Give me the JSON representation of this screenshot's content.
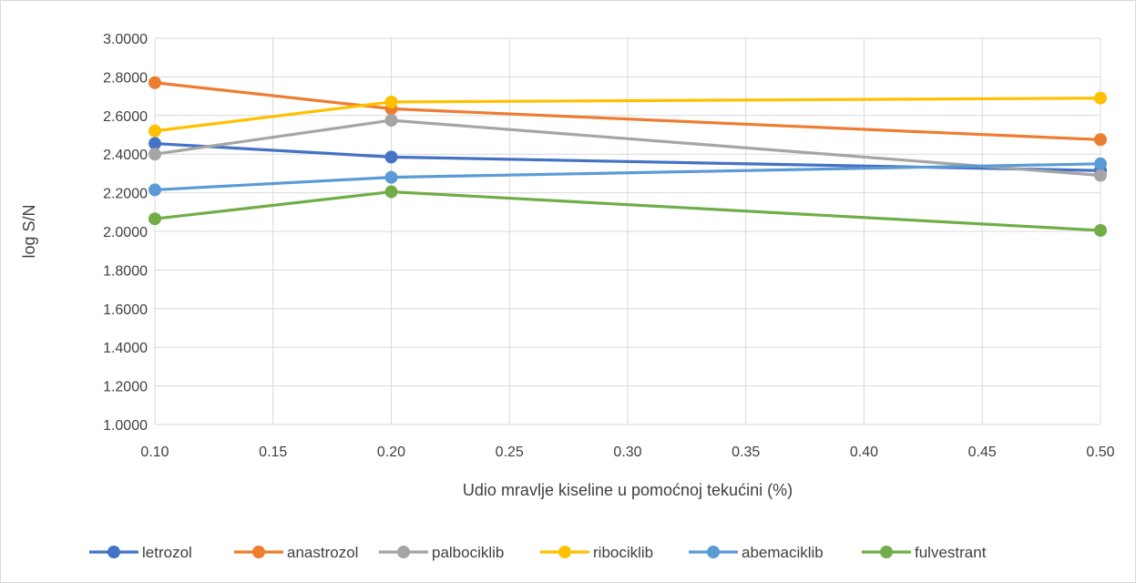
{
  "chart_data": {
    "type": "line",
    "title": "",
    "xlabel": "Udio mravlje kiseline u pomoćnoj tekućini (%)",
    "ylabel": "log S/N",
    "xlim": [
      0.1,
      0.5
    ],
    "ylim": [
      1.0,
      3.0
    ],
    "x_ticks": [
      "0.10",
      "0.15",
      "0.20",
      "0.25",
      "0.30",
      "0.35",
      "0.40",
      "0.45",
      "0.50"
    ],
    "y_ticks": [
      "1.0000",
      "1.2000",
      "1.4000",
      "1.6000",
      "1.8000",
      "2.0000",
      "2.2000",
      "2.4000",
      "2.6000",
      "2.8000",
      "3.0000"
    ],
    "grid": true,
    "legend_position": "bottom",
    "x": [
      0.1,
      0.2,
      0.5
    ],
    "series": [
      {
        "name": "letrozol",
        "color": "#4472c4",
        "values": [
          2.455,
          2.385,
          2.315
        ]
      },
      {
        "name": "anastrozol",
        "color": "#ed7d31",
        "values": [
          2.77,
          2.635,
          2.475
        ]
      },
      {
        "name": "palbociklib",
        "color": "#a5a5a5",
        "values": [
          2.4,
          2.575,
          2.29
        ]
      },
      {
        "name": "ribociklib",
        "color": "#ffc000",
        "values": [
          2.52,
          2.67,
          2.69
        ]
      },
      {
        "name": "abemaciklib",
        "color": "#5b9bd5",
        "values": [
          2.215,
          2.28,
          2.35
        ]
      },
      {
        "name": "fulvestrant",
        "color": "#70ad47",
        "values": [
          2.065,
          2.205,
          2.005
        ]
      }
    ]
  }
}
